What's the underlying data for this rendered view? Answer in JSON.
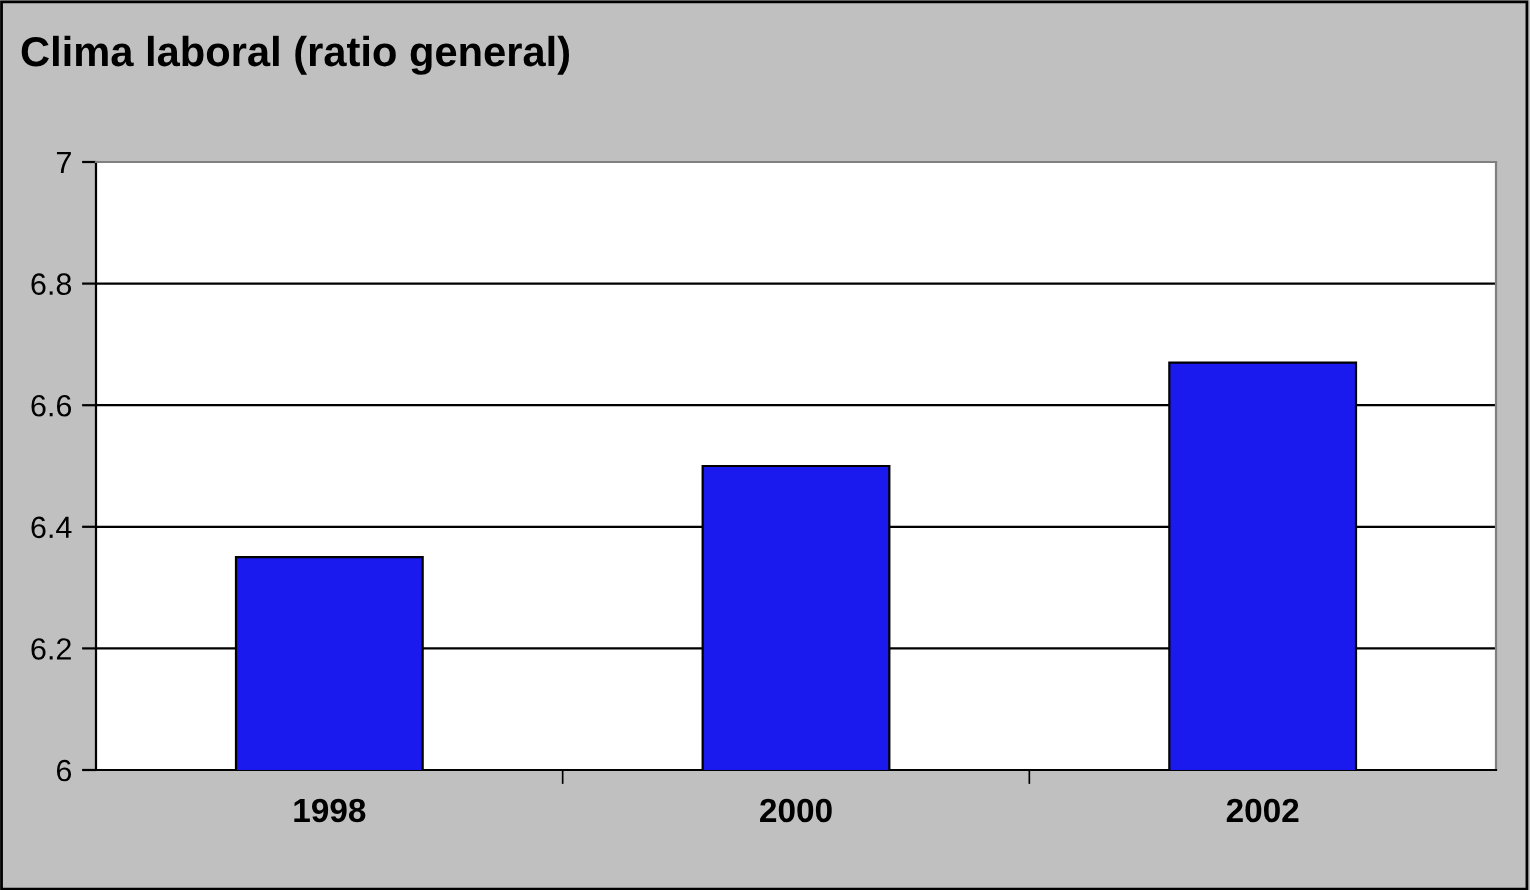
{
  "chart_data": {
    "type": "bar",
    "title": "Clima laboral (ratio general)",
    "categories": [
      "1998",
      "2000",
      "2002"
    ],
    "values": [
      6.35,
      6.5,
      6.67
    ],
    "color": "#1a1aee",
    "ylim": [
      6,
      7
    ],
    "yticks": [
      6,
      6.2,
      6.4,
      6.6,
      6.8,
      7
    ],
    "grid": "y"
  }
}
